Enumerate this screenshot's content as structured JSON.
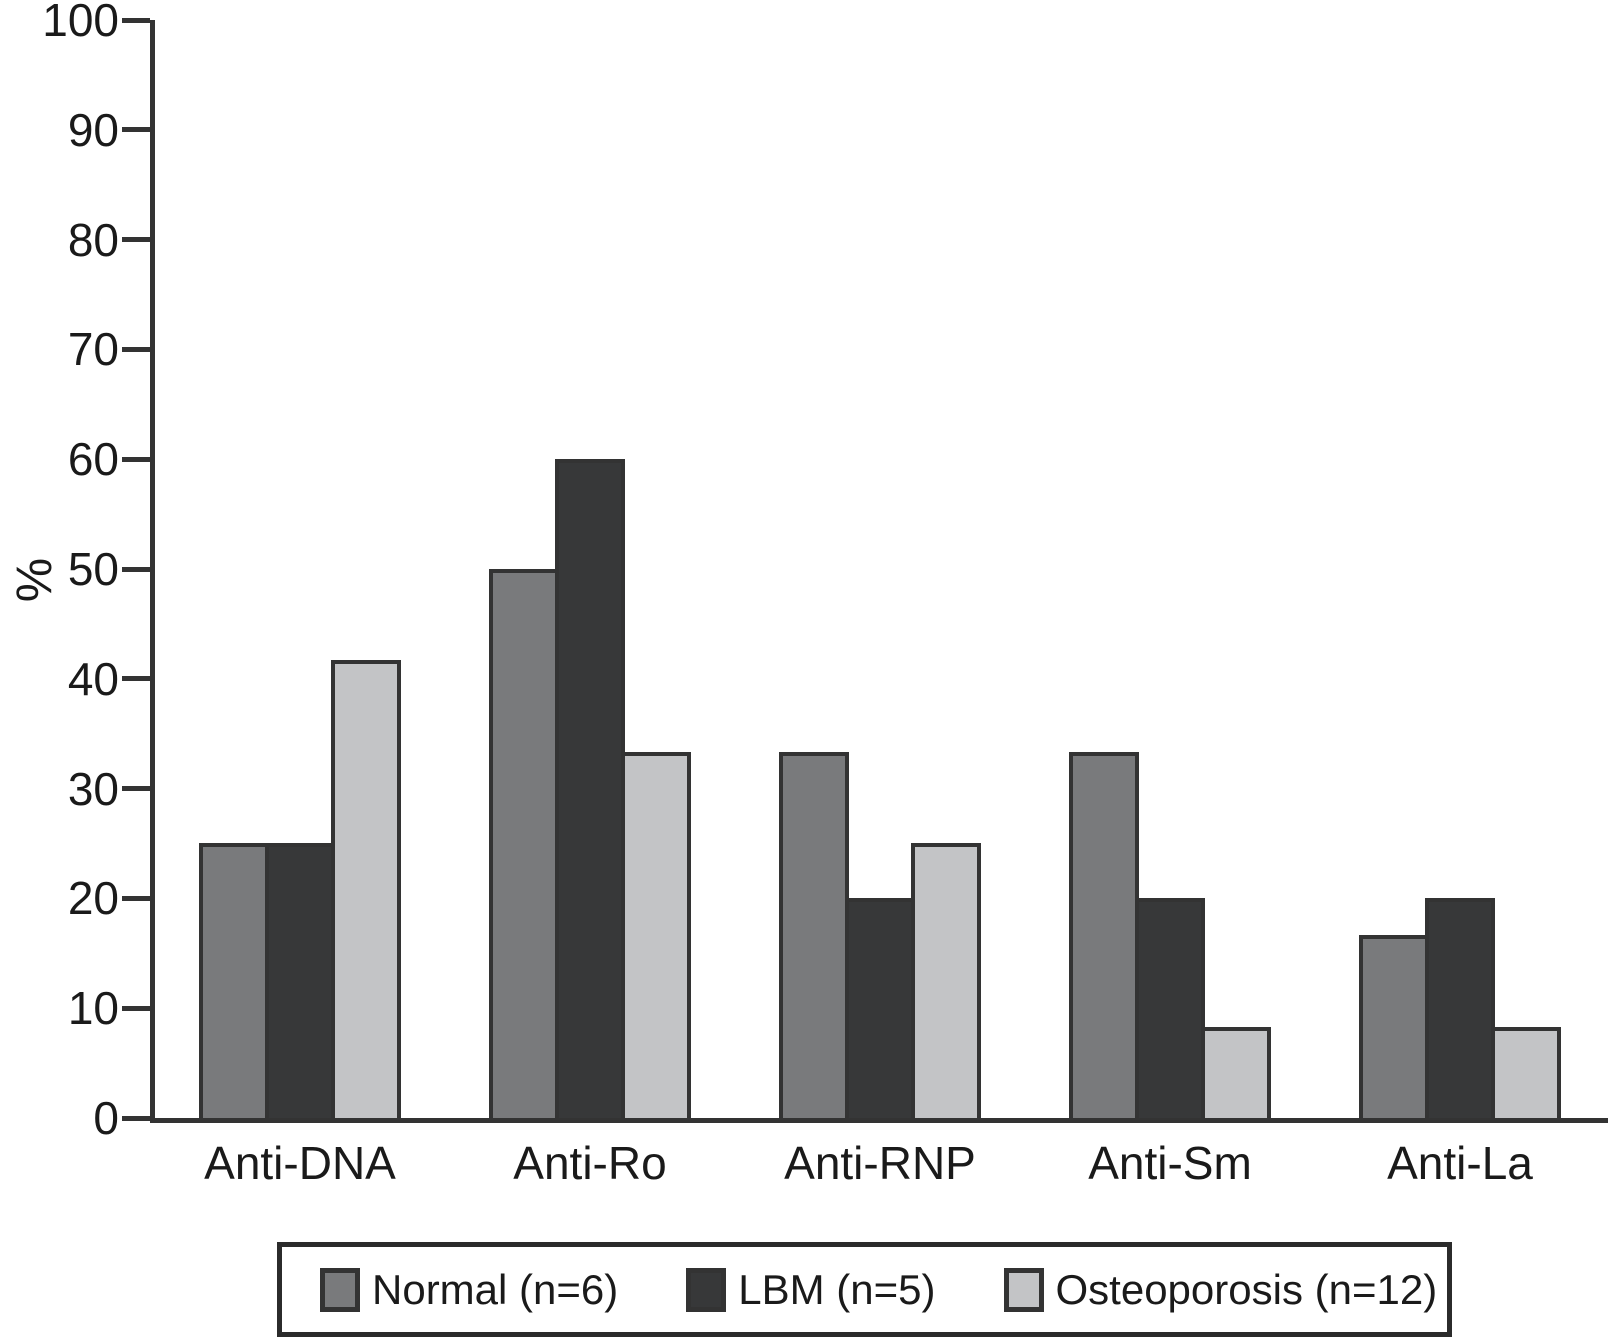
{
  "figure_background": "#ffffff",
  "colors": {
    "axis": "#333333",
    "bar_outline": "#333333",
    "text": "#1a1a1a",
    "legend_border": "#2b2b2b",
    "series_normal": "#797a7c",
    "series_lbm": "#373839",
    "series_osteoporosis": "#c3c4c6"
  },
  "chart_data": {
    "type": "bar",
    "title": "",
    "xlabel": "",
    "ylabel": "%",
    "ylim": [
      0,
      100
    ],
    "yticks": [
      0,
      10,
      20,
      30,
      40,
      50,
      60,
      70,
      80,
      90,
      100
    ],
    "grid": false,
    "legend_position": "bottom",
    "categories": [
      "Anti-DNA",
      "Anti-Ro",
      "Anti-RNP",
      "Anti-Sm",
      "Anti-La"
    ],
    "series": [
      {
        "name": "Normal (n=6)",
        "color": "#797a7c",
        "values": [
          25,
          50,
          33.3,
          33.3,
          16.7
        ]
      },
      {
        "name": "LBM (n=5)",
        "color": "#373839",
        "values": [
          25,
          60,
          20,
          20,
          20
        ]
      },
      {
        "name": "Osteoporosis (n=12)",
        "color": "#c3c4c6",
        "values": [
          41.7,
          33.3,
          25,
          8.3,
          8.3
        ]
      }
    ]
  }
}
